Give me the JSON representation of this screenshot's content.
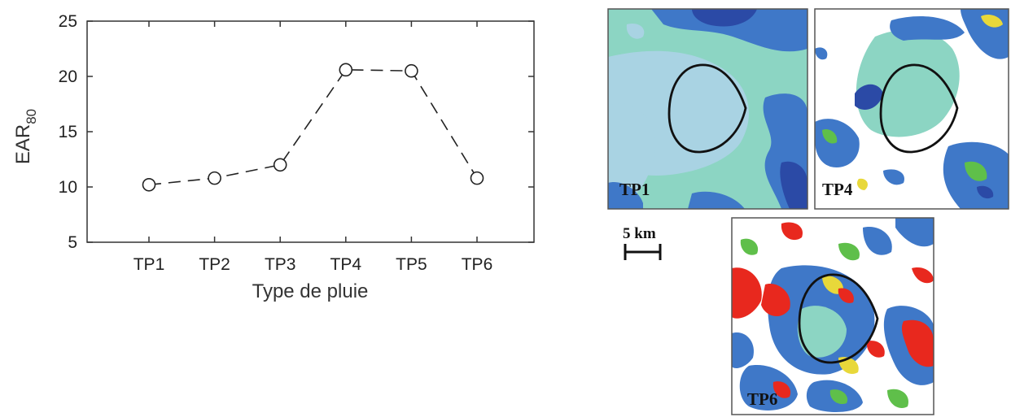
{
  "chart_data": {
    "type": "line",
    "categories": [
      "TP1",
      "TP2",
      "TP3",
      "TP4",
      "TP5",
      "TP6"
    ],
    "values": [
      10.2,
      10.8,
      12.0,
      20.6,
      20.5,
      10.8
    ],
    "xlabel": "Type de pluie",
    "ylabel": "EAR",
    "ylabel_sub": "80",
    "ylim": [
      5,
      25
    ],
    "yticks": [
      "5",
      "10",
      "15",
      "20",
      "25"
    ],
    "grid": false,
    "line_style": "dashed",
    "marker": "open-circle"
  },
  "maps": {
    "panels": [
      {
        "label": "TP1"
      },
      {
        "label": "TP4"
      },
      {
        "label": "TP6"
      }
    ],
    "scale_label": "5 km",
    "colors": {
      "light_blue": "#a9d3e3",
      "teal": "#8cd5c3",
      "blue": "#3f78c8",
      "dark_blue": "#2b4aa6",
      "green": "#5fbf4a",
      "yellow": "#e8d83a",
      "red": "#e8281e",
      "white": "#ffffff"
    }
  }
}
